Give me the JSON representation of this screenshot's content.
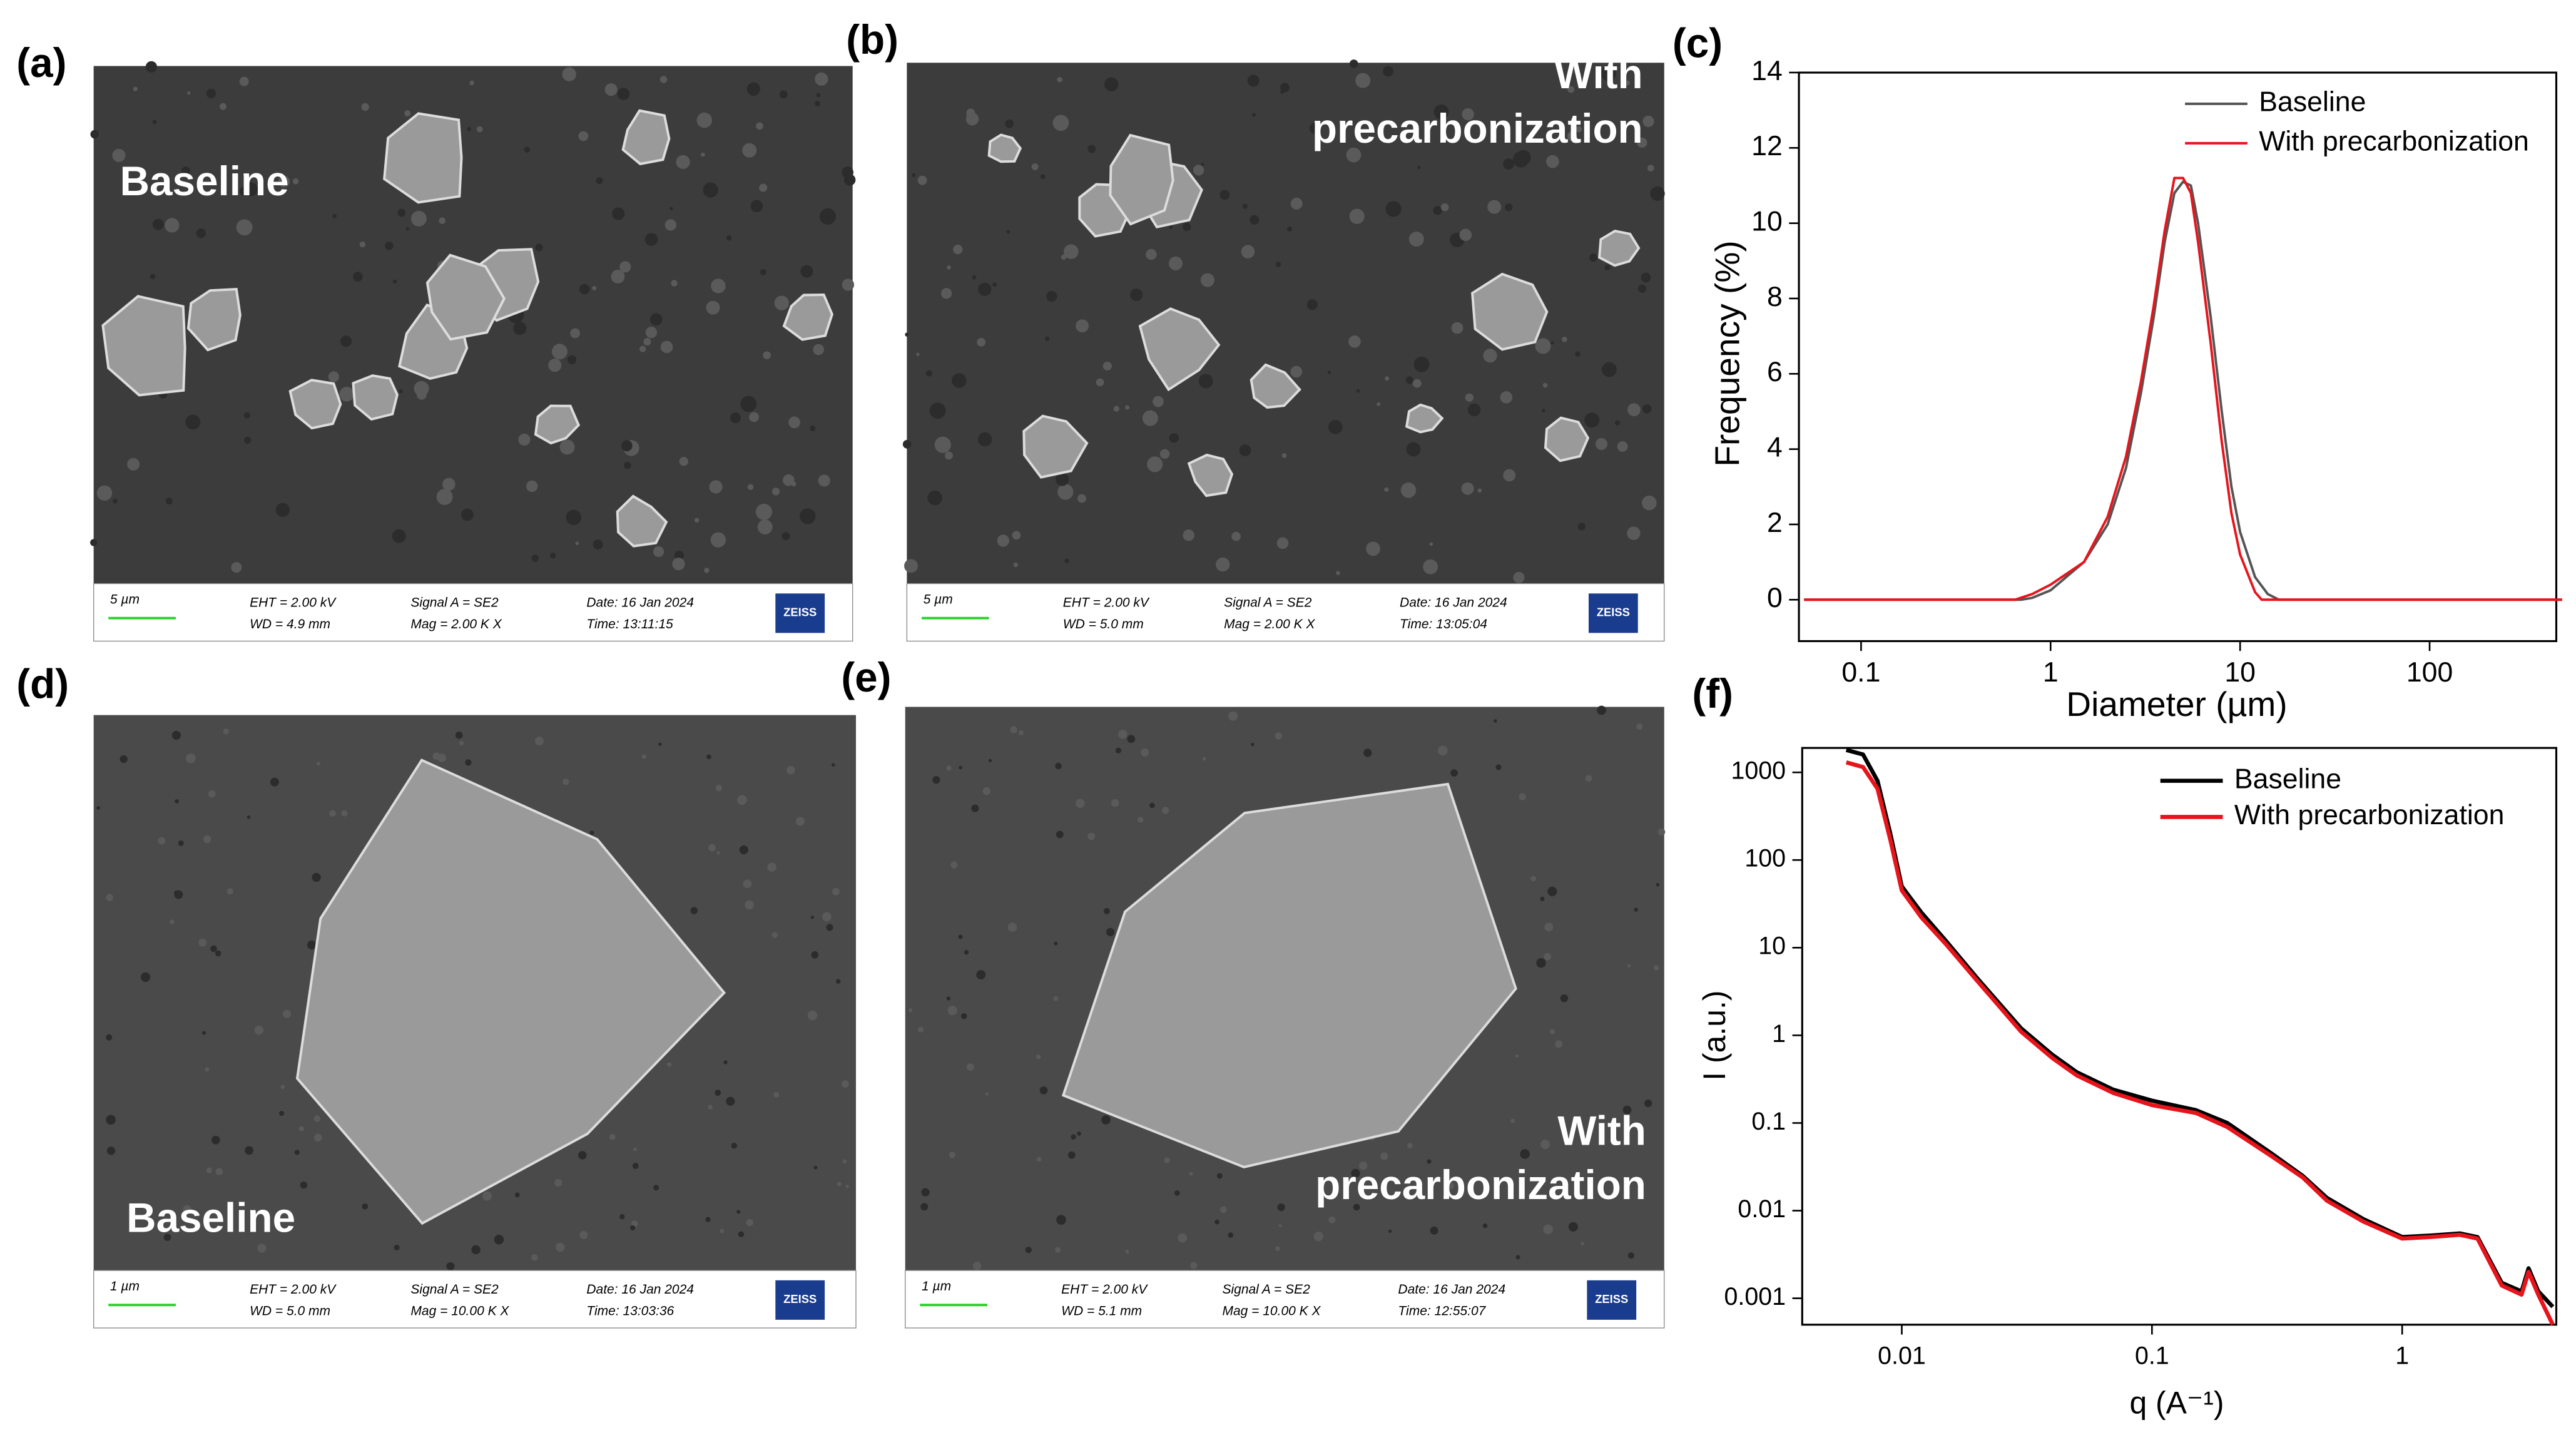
{
  "panels": [
    {
      "label": "(a)",
      "caption": [
        "Baseline"
      ],
      "scale": "5 µm",
      "eht": "EHT =  2.00 kV",
      "wd": "WD =  4.9 mm",
      "signal": "Signal A = SE2",
      "mag": "Mag =   2.00 K X",
      "date": "Date: 16 Jan 2024",
      "time": "Time: 13:11:15",
      "logo": "ZEISS"
    },
    {
      "label": "(b)",
      "caption": [
        "With",
        "precarbonization"
      ],
      "scale": "5 µm",
      "eht": "EHT =  2.00 kV",
      "wd": "WD =  5.0 mm",
      "signal": "Signal A = SE2",
      "mag": "Mag =   2.00 K X",
      "date": "Date: 16 Jan 2024",
      "time": "Time: 13:05:04",
      "logo": "ZEISS"
    },
    {
      "label": "(d)",
      "caption": [
        "Baseline"
      ],
      "scale": "1 µm",
      "eht": "EHT =  2.00 kV",
      "wd": "WD =  5.0 mm",
      "signal": "Signal A = SE2",
      "mag": "Mag =   10.00 K X",
      "date": "Date: 16 Jan 2024",
      "time": "Time: 13:03:36",
      "logo": "ZEISS"
    },
    {
      "label": "(e)",
      "caption": [
        "With",
        "precarbonization"
      ],
      "scale": "1 µm",
      "eht": "EHT =  2.00 kV",
      "wd": "WD =  5.1 mm",
      "signal": "Signal A = SE2",
      "mag": "Mag =   10.00 K X",
      "date": "Date: 16 Jan 2024",
      "time": "Time: 12:55:07",
      "logo": "ZEISS"
    }
  ],
  "chart_data": [
    {
      "type": "line",
      "label": "(c)",
      "x_label": "Diameter (µm)",
      "y_label": "Frequency (%)",
      "log_x": true,
      "log_y": false,
      "xlim": [
        0.047,
        466
      ],
      "xticks": [
        0.1,
        1,
        10,
        100
      ],
      "ylim": [
        -1.1,
        14
      ],
      "yticks": [
        0,
        2,
        4,
        6,
        8,
        10,
        12,
        14
      ],
      "line_width": 1.5,
      "series": [
        {
          "name": "Baseline",
          "color": "#555555",
          "x": [
            0.05,
            0.7,
            0.8,
            1,
            1.5,
            2,
            2.5,
            3,
            3.5,
            4,
            4.5,
            5,
            5.5,
            6,
            7,
            8,
            9,
            10,
            12,
            14,
            16,
            500
          ],
          "values": [
            0,
            0,
            0.05,
            0.25,
            1,
            2,
            3.5,
            5.5,
            7.5,
            9.5,
            10.8,
            11.1,
            11,
            10,
            7.5,
            5,
            3,
            1.8,
            0.6,
            0.15,
            0,
            0
          ]
        },
        {
          "name": "With precarbonization",
          "color": "#e8141b",
          "x": [
            0.05,
            0.65,
            0.8,
            1,
            1.5,
            2,
            2.5,
            3,
            3.5,
            4,
            4.5,
            5,
            5.5,
            6,
            7,
            8,
            9,
            10,
            12,
            13,
            500
          ],
          "values": [
            0,
            0,
            0.15,
            0.4,
            1,
            2.2,
            3.8,
            5.8,
            7.8,
            9.8,
            11.2,
            11.2,
            10.8,
            9.5,
            6.8,
            4.2,
            2.3,
            1.2,
            0.2,
            0,
            0
          ]
        }
      ]
    },
    {
      "type": "line",
      "label": "(f)",
      "x_label": "q (A⁻¹)",
      "y_label": "I (a.u.)",
      "log_x": true,
      "log_y": true,
      "xlim": [
        0.004,
        4.13
      ],
      "xticks": [
        0.01,
        0.1,
        1
      ],
      "ylim": [
        0.0005,
        1900
      ],
      "yticks": [
        0.001,
        0.01,
        0.1,
        1,
        10,
        100,
        1000
      ],
      "line_width": 2.5,
      "series": [
        {
          "name": "Baseline",
          "color": "#000000",
          "x": [
            0.006,
            0.007,
            0.008,
            0.009,
            0.01,
            0.012,
            0.015,
            0.02,
            0.03,
            0.04,
            0.05,
            0.07,
            0.1,
            0.15,
            0.2,
            0.3,
            0.4,
            0.5,
            0.7,
            1,
            1.3,
            1.7,
            2,
            2.5,
            3,
            3.2,
            3.5,
            4
          ],
          "values": [
            1800,
            1600,
            800,
            200,
            50,
            25,
            12,
            4.5,
            1.2,
            0.6,
            0.38,
            0.24,
            0.18,
            0.14,
            0.1,
            0.045,
            0.025,
            0.014,
            0.008,
            0.005,
            0.0052,
            0.0055,
            0.005,
            0.0015,
            0.0012,
            0.0022,
            0.0012,
            0.0008
          ]
        },
        {
          "name": "With precarbonization",
          "color": "#e8141b",
          "x": [
            0.006,
            0.007,
            0.008,
            0.009,
            0.01,
            0.012,
            0.015,
            0.02,
            0.03,
            0.04,
            0.05,
            0.07,
            0.1,
            0.15,
            0.2,
            0.3,
            0.4,
            0.5,
            0.7,
            1,
            1.3,
            1.7,
            2,
            2.5,
            3,
            3.2,
            3.5,
            4
          ],
          "values": [
            1300,
            1150,
            650,
            170,
            45,
            22,
            11,
            4.2,
            1.1,
            0.55,
            0.35,
            0.22,
            0.16,
            0.13,
            0.09,
            0.042,
            0.024,
            0.013,
            0.0075,
            0.0048,
            0.005,
            0.0053,
            0.0048,
            0.0014,
            0.0011,
            0.002,
            0.0011,
            0.0005
          ]
        }
      ]
    }
  ]
}
